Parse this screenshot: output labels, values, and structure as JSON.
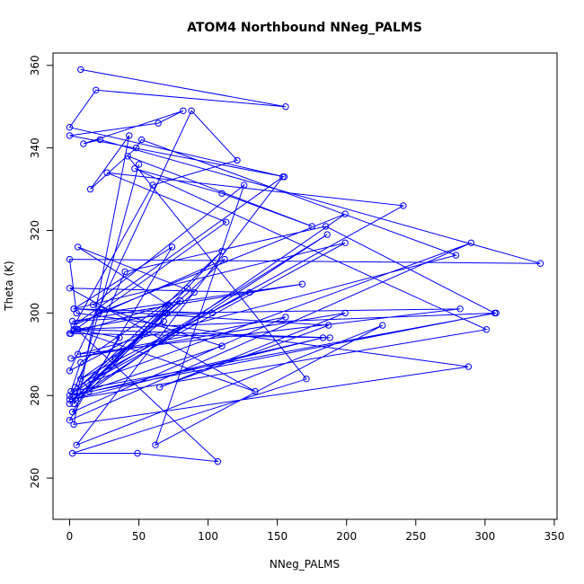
{
  "chart_data": {
    "type": "line",
    "title": "ATOM4 Northbound NNeg_PALMS",
    "xlabel": "NNeg_PALMS",
    "ylabel": "Theta (K)",
    "xlim": [
      -12,
      352
    ],
    "ylim": [
      250,
      363
    ],
    "x_ticks": [
      0,
      50,
      100,
      150,
      200,
      250,
      300,
      350
    ],
    "y_ticks": [
      260,
      280,
      300,
      320,
      340,
      360
    ],
    "x_tick_labels": [
      "0",
      "50",
      "100",
      "150",
      "200",
      "250",
      "300",
      "350"
    ],
    "y_tick_labels": [
      "260",
      "280",
      "300",
      "320",
      "340",
      "360"
    ],
    "grid": false,
    "legend": "none",
    "series": [
      {
        "color": "#0000ff",
        "markers": "open-circle",
        "x": [
          8,
          156,
          19,
          0,
          155,
          0,
          64,
          82,
          10,
          22,
          340,
          0,
          5,
          288,
          3,
          43,
          15,
          48,
          52,
          279,
          6,
          282,
          69,
          0,
          85,
          8,
          1,
          308,
          3,
          134,
          0,
          130,
          8,
          68,
          0,
          88,
          121,
          60,
          0,
          113,
          27,
          241,
          4,
          40,
          185,
          307,
          0,
          70,
          5,
          107,
          49,
          2,
          171,
          42,
          175,
          110,
          47,
          301,
          0,
          183,
          3,
          110,
          17,
          126,
          62,
          226,
          5,
          154,
          3,
          112,
          33,
          80,
          1,
          188,
          6,
          36,
          2,
          156,
          1,
          199,
          65,
          187,
          3,
          199,
          13,
          290,
          0,
          74,
          3,
          103,
          2,
          168,
          21,
          199,
          14,
          110,
          4,
          186,
          2,
          90,
          6,
          71,
          3,
          50
        ],
        "y": [
          359,
          350,
          354,
          345,
          333,
          343,
          346,
          349,
          341,
          342,
          312,
          313,
          300,
          287,
          273,
          343,
          330,
          340,
          342,
          314,
          290,
          301,
          300,
          278,
          306,
          288,
          281,
          300,
          296,
          281,
          306,
          305,
          284,
          298,
          286,
          349,
          337,
          331,
          295,
          322,
          334,
          326,
          282,
          310,
          321,
          300,
          280,
          300,
          296,
          264,
          266,
          266,
          284,
          338,
          321,
          329,
          335,
          296,
          279,
          294,
          280,
          292,
          302,
          331,
          268,
          297,
          268,
          333,
          297,
          313,
          289,
          303,
          295,
          294,
          296,
          294,
          276,
          299,
          289,
          300,
          282,
          297,
          301,
          317,
          283,
          317,
          274,
          316,
          301,
          300,
          298,
          307,
          300,
          324,
          281,
          315,
          281,
          319,
          279,
          305,
          316,
          302,
          278,
          336
        ]
      }
    ]
  }
}
